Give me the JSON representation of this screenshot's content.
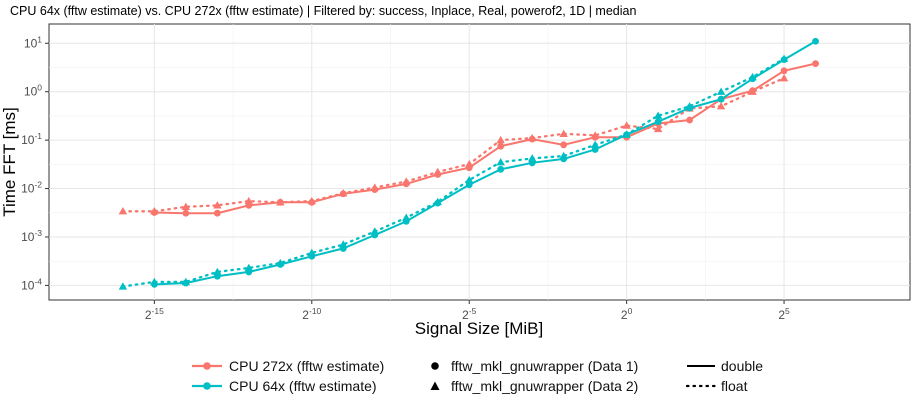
{
  "chart_data": {
    "type": "line",
    "title": "CPU 64x (fftw estimate) vs. CPU 272x (fftw estimate) | Filtered by: success, Inplace, Real, powerof2, 1D | median",
    "xlabel": "Signal Size [MiB]",
    "ylabel": "Time FFT [ms]",
    "x_scale": "log2",
    "y_scale": "log10",
    "xlim": [
      3e-06,
      512
    ],
    "ylim": [
      5e-05,
      25
    ],
    "x_ticks": [
      {
        "value": 3.0517578125e-05,
        "label": "2",
        "exp": "-15"
      },
      {
        "value": 0.0009765625,
        "label": "2",
        "exp": "-10"
      },
      {
        "value": 0.03125,
        "label": "2",
        "exp": "-5"
      },
      {
        "value": 1,
        "label": "2",
        "exp": "0"
      },
      {
        "value": 32,
        "label": "2",
        "exp": "5"
      }
    ],
    "y_ticks": [
      {
        "value": 0.0001,
        "label": "10",
        "exp": "-4"
      },
      {
        "value": 0.001,
        "label": "10",
        "exp": "-3"
      },
      {
        "value": 0.01,
        "label": "10",
        "exp": "-2"
      },
      {
        "value": 0.1,
        "label": "10",
        "exp": "-1"
      },
      {
        "value": 1,
        "label": "10",
        "exp": "0"
      },
      {
        "value": 10,
        "label": "10",
        "exp": "1"
      }
    ],
    "grid": true,
    "legend_position": "bottom",
    "series": [
      {
        "name": "CPU 272x (fftw estimate)",
        "color": "#f8766d",
        "library": "fftw_mkl_gnuwrapper (Data 1)",
        "precision": "double",
        "x": [
          3.0517578125e-05,
          6.103515625e-05,
          0.0001220703125,
          0.000244140625,
          0.00048828125,
          0.0009765625,
          0.001953125,
          0.00390625,
          0.0078125,
          0.015625,
          0.03125,
          0.0625,
          0.125,
          0.25,
          0.5,
          1,
          2,
          4,
          8,
          16,
          32,
          64
        ],
        "y": [
          0.0032,
          0.0031,
          0.0031,
          0.0045,
          0.0052,
          0.0052,
          0.0078,
          0.0095,
          0.0125,
          0.0195,
          0.027,
          0.075,
          0.105,
          0.08,
          0.115,
          0.115,
          0.22,
          0.26,
          0.7,
          1.05,
          2.7,
          3.8
        ]
      },
      {
        "name": "CPU 272x (fftw estimate)",
        "color": "#f8766d",
        "library": "fftw_mkl_gnuwrapper (Data 2)",
        "precision": "float",
        "x": [
          1.52587890625e-05,
          3.0517578125e-05,
          6.103515625e-05,
          0.0001220703125,
          0.000244140625,
          0.00048828125,
          0.0009765625,
          0.001953125,
          0.00390625,
          0.0078125,
          0.015625,
          0.03125,
          0.0625,
          0.125,
          0.25,
          0.5,
          1,
          2,
          4,
          8,
          16,
          32
        ],
        "y": [
          0.0034,
          0.0034,
          0.0042,
          0.0045,
          0.0055,
          0.0052,
          0.0055,
          0.008,
          0.0105,
          0.014,
          0.022,
          0.032,
          0.1,
          0.11,
          0.135,
          0.125,
          0.2,
          0.17,
          0.45,
          0.5,
          1.0,
          1.9
        ]
      },
      {
        "name": "CPU 64x (fftw estimate)",
        "color": "#00bfc4",
        "library": "fftw_mkl_gnuwrapper (Data 1)",
        "precision": "double",
        "x": [
          3.0517578125e-05,
          6.103515625e-05,
          0.0001220703125,
          0.000244140625,
          0.00048828125,
          0.0009765625,
          0.001953125,
          0.00390625,
          0.0078125,
          0.015625,
          0.03125,
          0.0625,
          0.125,
          0.25,
          0.5,
          1,
          2,
          4,
          8,
          16,
          32,
          64
        ],
        "y": [
          0.000105,
          0.000112,
          0.000155,
          0.00019,
          0.00027,
          0.0004,
          0.00058,
          0.0011,
          0.0021,
          0.005,
          0.012,
          0.025,
          0.034,
          0.041,
          0.064,
          0.13,
          0.24,
          0.46,
          0.7,
          1.85,
          4.6,
          11.0
        ]
      },
      {
        "name": "CPU 64x (fftw estimate)",
        "color": "#00bfc4",
        "library": "fftw_mkl_gnuwrapper (Data 2)",
        "precision": "float",
        "x": [
          1.52587890625e-05,
          3.0517578125e-05,
          6.103515625e-05,
          0.0001220703125,
          0.000244140625,
          0.00048828125,
          0.0009765625,
          0.001953125,
          0.00390625,
          0.0078125,
          0.015625,
          0.03125,
          0.0625,
          0.125,
          0.25,
          0.5,
          1,
          2,
          4,
          8,
          16,
          32
        ],
        "y": [
          9.5e-05,
          0.000118,
          0.000118,
          0.00019,
          0.00023,
          0.00029,
          0.00047,
          0.0007,
          0.0013,
          0.0025,
          0.0053,
          0.015,
          0.035,
          0.042,
          0.047,
          0.08,
          0.13,
          0.32,
          0.5,
          1.0,
          2.0,
          4.8
        ]
      }
    ],
    "legend": {
      "devices": [
        {
          "label": "CPU 272x (fftw estimate)",
          "color": "#f8766d"
        },
        {
          "label": "CPU 64x (fftw estimate)",
          "color": "#00bfc4"
        }
      ],
      "libraries": [
        {
          "label": "fftw_mkl_gnuwrapper (Data 1)",
          "shape": "circle"
        },
        {
          "label": "fftw_mkl_gnuwrapper (Data 2)",
          "shape": "triangle"
        }
      ],
      "precisions": [
        {
          "label": "double",
          "line": "solid"
        },
        {
          "label": "float",
          "line": "dotted"
        }
      ]
    }
  }
}
